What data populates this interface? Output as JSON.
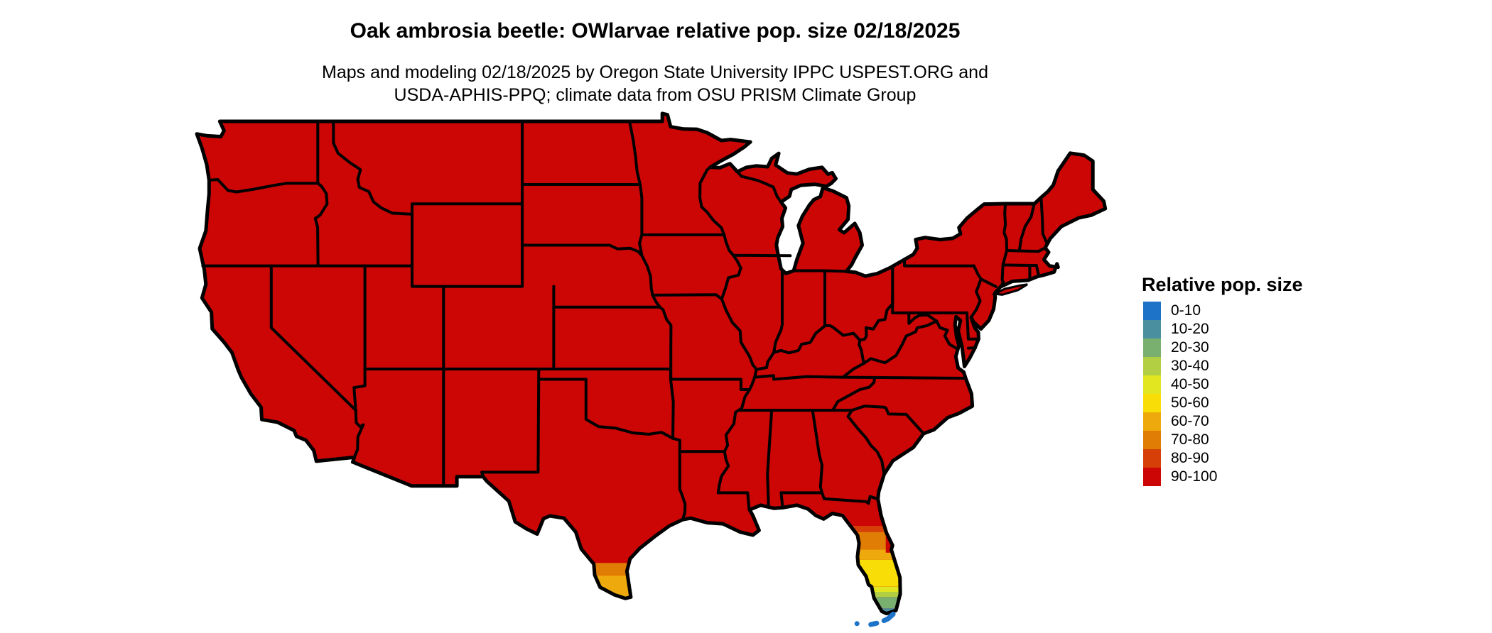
{
  "header": {
    "title": "Oak ambrosia beetle: OWlarvae relative pop. size 02/18/2025",
    "subtitle_line1": "Maps and modeling 02/18/2025 by Oregon State University IPPC USPEST.ORG and",
    "subtitle_line2": "USDA-APHIS-PPQ; climate data from OSU PRISM Climate Group"
  },
  "legend": {
    "title": "Relative pop. size",
    "entries": [
      {
        "label": "0-10",
        "color": "#1c73c8"
      },
      {
        "label": "10-20",
        "color": "#4a8f9f"
      },
      {
        "label": "20-30",
        "color": "#7ab06f"
      },
      {
        "label": "30-40",
        "color": "#b2cf44"
      },
      {
        "label": "40-50",
        "color": "#e2e621"
      },
      {
        "label": "50-60",
        "color": "#f8dd06"
      },
      {
        "label": "60-70",
        "color": "#eeaa0c"
      },
      {
        "label": "70-80",
        "color": "#e07d04"
      },
      {
        "label": "80-90",
        "color": "#d64008"
      },
      {
        "label": "90-100",
        "color": "#cc0505"
      }
    ]
  },
  "map": {
    "type": "choropleth-us-states",
    "background": "#ffffff",
    "state_border_color": "#000000",
    "base_category": "90-100",
    "regions": {
      "continental_us": "90-100",
      "south_florida_gradient": [
        {
          "category": "80-90",
          "lat_from": 29.1,
          "lat_to": 29.4
        },
        {
          "category": "70-80",
          "lat_from": 28.25,
          "lat_to": 29.1
        },
        {
          "category": "60-70",
          "lat_from": 27.75,
          "lat_to": 28.25
        },
        {
          "category": "50-60",
          "lat_from": 26.45,
          "lat_to": 27.75
        },
        {
          "category": "40-50",
          "lat_from": 26.2,
          "lat_to": 26.45
        },
        {
          "category": "30-40",
          "lat_from": 25.95,
          "lat_to": 26.2
        },
        {
          "category": "20-30",
          "lat_from": 25.4,
          "lat_to": 25.95
        },
        {
          "category": "10-20",
          "lat_from": 24.4,
          "lat_to": 25.4
        }
      ],
      "florida_east_coast_strip": {
        "category": "90-100",
        "lat_from": 28.1,
        "lat_to": 29.45,
        "lon_from": -80.95,
        "lon_to": -80.35
      },
      "south_texas_gradient": [
        {
          "category": "70-80",
          "lat_from": 27.0,
          "lat_to": 27.6
        },
        {
          "category": "60-70",
          "lat_from": 26.0,
          "lat_to": 27.0
        },
        {
          "category": "50-60",
          "lat_from": 25.5,
          "lat_to": 26.0
        }
      ],
      "florida_keys": {
        "category": "0-10"
      }
    }
  }
}
